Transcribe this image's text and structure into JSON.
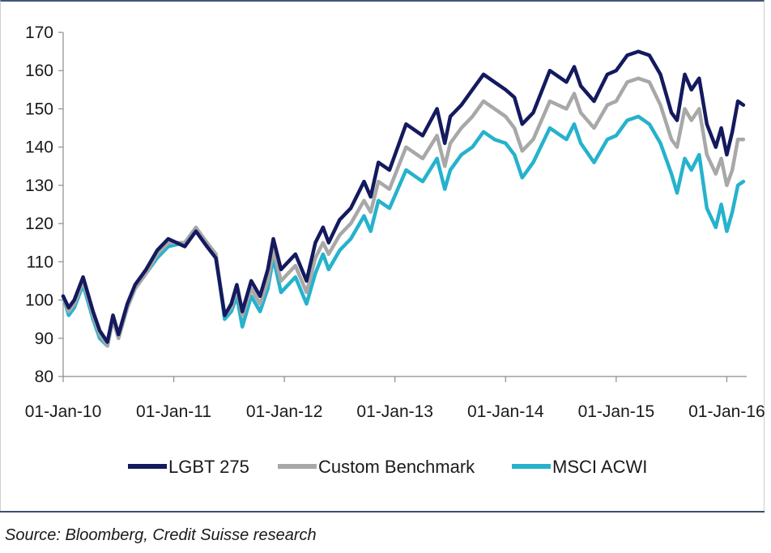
{
  "source": "Source: Bloomberg, Credit Suisse research",
  "chart_data": {
    "type": "line",
    "title": "",
    "xlabel": "",
    "ylabel": "",
    "ylim": [
      80,
      170
    ],
    "yticks": [
      80,
      90,
      100,
      110,
      120,
      130,
      140,
      150,
      160,
      170
    ],
    "xlim": [
      2010.0,
      2016.18
    ],
    "xticks": [
      2010,
      2011,
      2012,
      2013,
      2014,
      2015,
      2016
    ],
    "xtick_labels": [
      "01-Jan-10",
      "01-Jan-11",
      "01-Jan-12",
      "01-Jan-13",
      "01-Jan-14",
      "01-Jan-15",
      "01-Jan-16"
    ],
    "grid": false,
    "legend_position": "bottom",
    "x": [
      2010.0,
      2010.05,
      2010.1,
      2010.18,
      2010.27,
      2010.33,
      2010.4,
      2010.45,
      2010.5,
      2010.58,
      2010.65,
      2010.75,
      2010.85,
      2010.95,
      2011.1,
      2011.2,
      2011.3,
      2011.38,
      2011.46,
      2011.52,
      2011.57,
      2011.62,
      2011.7,
      2011.78,
      2011.85,
      2011.9,
      2011.97,
      2012.1,
      2012.2,
      2012.28,
      2012.35,
      2012.4,
      2012.5,
      2012.6,
      2012.72,
      2012.78,
      2012.85,
      2012.95,
      2013.1,
      2013.25,
      2013.38,
      2013.45,
      2013.5,
      2013.6,
      2013.7,
      2013.8,
      2013.9,
      2014.0,
      2014.08,
      2014.15,
      2014.25,
      2014.4,
      2014.55,
      2014.62,
      2014.68,
      2014.8,
      2014.92,
      2015.0,
      2015.1,
      2015.2,
      2015.3,
      2015.4,
      2015.5,
      2015.55,
      2015.62,
      2015.68,
      2015.75,
      2015.82,
      2015.9,
      2015.95,
      2016.0,
      2016.05,
      2016.1,
      2016.15
    ],
    "series": [
      {
        "name": "LGBT 275",
        "color": "#141a5e",
        "values": [
          101,
          98,
          100,
          106,
          97,
          92,
          89,
          96,
          91,
          99,
          104,
          108,
          113,
          116,
          114,
          118,
          114,
          111,
          96,
          99,
          104,
          97,
          105,
          101,
          108,
          116,
          108,
          112,
          105,
          115,
          119,
          115,
          121,
          124,
          131,
          127,
          136,
          134,
          146,
          143,
          150,
          141,
          148,
          151,
          155,
          159,
          157,
          155,
          153,
          146,
          149,
          160,
          157,
          161,
          156,
          152,
          159,
          160,
          164,
          165,
          164,
          159,
          149,
          147,
          159,
          155,
          158,
          146,
          140,
          145,
          138,
          144,
          152,
          151
        ]
      },
      {
        "name": "Custom Benchmark",
        "color": "#a8a8a8",
        "values": [
          101,
          97,
          99,
          105,
          96,
          91,
          88,
          95,
          90,
          98,
          103,
          107,
          112,
          115,
          115,
          119,
          115,
          112,
          96,
          98,
          103,
          96,
          103,
          99,
          105,
          113,
          105,
          109,
          102,
          111,
          115,
          112,
          117,
          120,
          126,
          123,
          131,
          129,
          140,
          137,
          143,
          135,
          141,
          145,
          148,
          152,
          150,
          148,
          145,
          139,
          142,
          152,
          150,
          154,
          149,
          145,
          151,
          152,
          157,
          158,
          157,
          151,
          142,
          140,
          150,
          147,
          150,
          138,
          133,
          137,
          130,
          134,
          142,
          142
        ]
      },
      {
        "name": "MSCI ACWI",
        "color": "#26b2cd",
        "values": [
          101,
          96,
          98,
          104,
          95,
          90,
          88,
          95,
          90,
          98,
          103,
          107,
          111,
          114,
          115,
          118,
          115,
          112,
          95,
          97,
          101,
          93,
          101,
          97,
          103,
          111,
          102,
          106,
          99,
          107,
          112,
          108,
          113,
          116,
          122,
          118,
          126,
          124,
          134,
          131,
          137,
          129,
          134,
          138,
          140,
          144,
          142,
          141,
          138,
          132,
          136,
          145,
          142,
          146,
          141,
          136,
          142,
          143,
          147,
          148,
          146,
          141,
          133,
          128,
          137,
          134,
          138,
          124,
          119,
          125,
          118,
          123,
          130,
          131
        ]
      }
    ]
  }
}
